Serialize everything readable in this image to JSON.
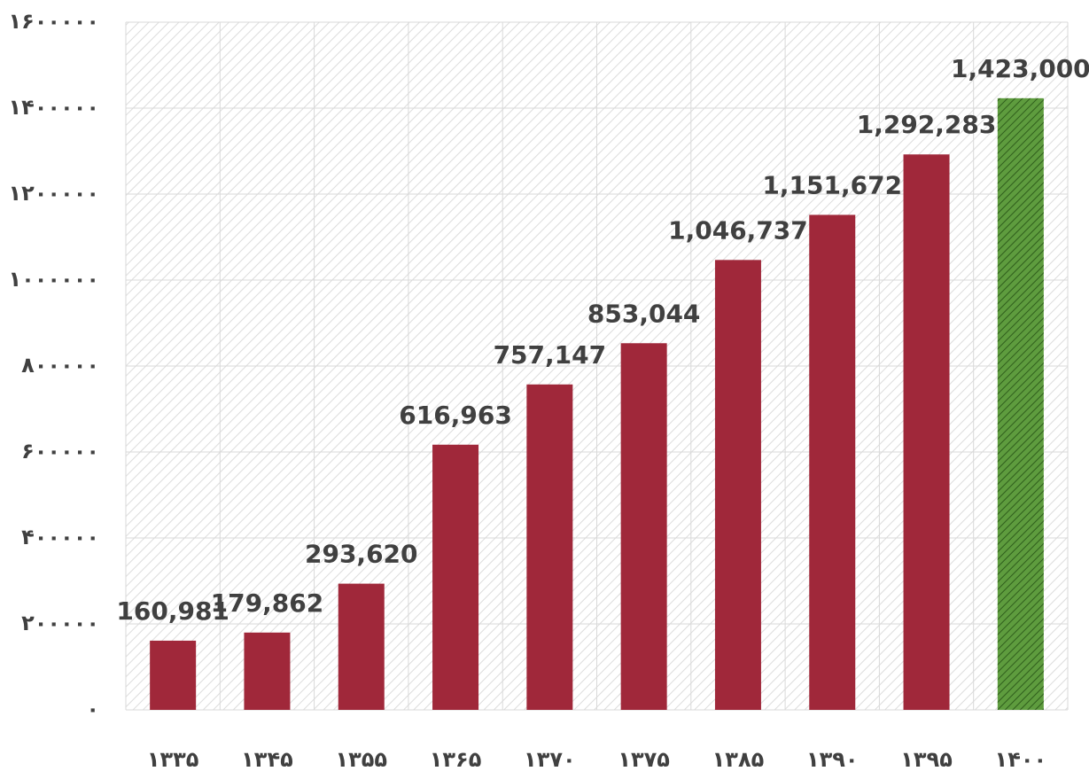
{
  "chart_data": {
    "type": "bar",
    "categories": [
      "۱۳۳۵",
      "۱۳۴۵",
      "۱۳۵۵",
      "۱۳۶۵",
      "۱۳۷۰",
      "۱۳۷۵",
      "۱۳۸۵",
      "۱۳۹۰",
      "۱۳۹۵",
      "۱۴۰۰"
    ],
    "values": [
      160981,
      179862,
      293620,
      616963,
      757147,
      853044,
      1046737,
      1151672,
      1292283,
      1423000
    ],
    "value_labels": [
      "160,981",
      "179,862",
      "293,620",
      "616,963",
      "757,147",
      "853,044",
      "1,046,737",
      "1,151,672",
      "1,292,283",
      "1,423,000"
    ],
    "colors": [
      "#a0283a",
      "#a0283a",
      "#a0283a",
      "#a0283a",
      "#a0283a",
      "#a0283a",
      "#a0283a",
      "#a0283a",
      "#a0283a",
      "#5e9c3e"
    ],
    "hatched": [
      false,
      false,
      false,
      false,
      false,
      false,
      false,
      false,
      false,
      true
    ],
    "ylim": [
      0,
      1600000
    ],
    "yticks": [
      {
        "value": 0,
        "label": "۰"
      },
      {
        "value": 200000,
        "label": "۲۰۰۰۰۰"
      },
      {
        "value": 400000,
        "label": "۴۰۰۰۰۰"
      },
      {
        "value": 600000,
        "label": "۶۰۰۰۰۰"
      },
      {
        "value": 800000,
        "label": "۸۰۰۰۰۰"
      },
      {
        "value": 1000000,
        "label": "۱۰۰۰۰۰۰"
      },
      {
        "value": 1200000,
        "label": "۱۲۰۰۰۰۰"
      },
      {
        "value": 1400000,
        "label": "۱۴۰۰۰۰۰"
      },
      {
        "value": 1600000,
        "label": "۱۶۰۰۰۰۰"
      }
    ],
    "grid": true
  }
}
